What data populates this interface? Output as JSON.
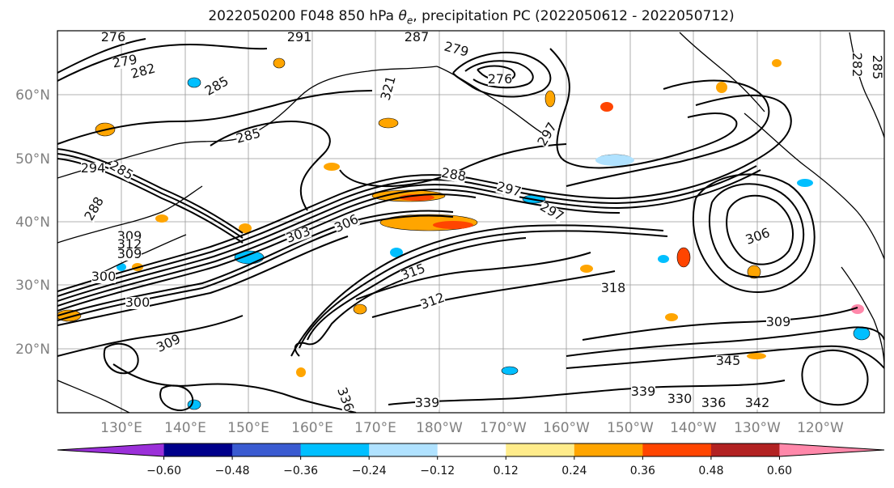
{
  "title": {
    "prefix": "2022050200 F048 850 hPa ",
    "symbol": "θ",
    "subscript": "e",
    "suffix": ", precipitation PC (2022050612 - 2022050712)"
  },
  "map": {
    "lat_labels": [
      "60°N",
      "50°N",
      "40°N",
      "30°N",
      "20°N"
    ],
    "lon_labels": [
      "130°E",
      "140°E",
      "150°E",
      "160°E",
      "170°E",
      "180°W",
      "170°W",
      "160°W",
      "150°W",
      "140°W",
      "130°W",
      "120°W"
    ],
    "contour_labels": [
      "276",
      "279",
      "282",
      "285",
      "291",
      "287",
      "279",
      "276",
      "288",
      "285",
      "285",
      "294",
      "288",
      "297",
      "297",
      "306",
      "309",
      "312",
      "309",
      "306",
      "303",
      "300",
      "300",
      "315",
      "312",
      "318",
      "309",
      "309",
      "336",
      "339",
      "339",
      "330",
      "336",
      "342",
      "345",
      "321",
      "297",
      "285",
      "282"
    ],
    "colors": {
      "contour": "#000000",
      "grid": "#999999",
      "coast": "#000000"
    }
  },
  "colorbar": {
    "tick_labels": [
      "−0.60",
      "−0.48",
      "−0.36",
      "−0.24",
      "−0.12",
      "0.12",
      "0.24",
      "0.36",
      "0.48",
      "0.60"
    ],
    "colors": [
      "#9b30d9",
      "#00008b",
      "#3a5bd1",
      "#00bfff",
      "#b0e2ff",
      "#ffffff",
      "#ffec8b",
      "#ffa500",
      "#ff4500",
      "#b22222",
      "#ff88aa"
    ]
  }
}
